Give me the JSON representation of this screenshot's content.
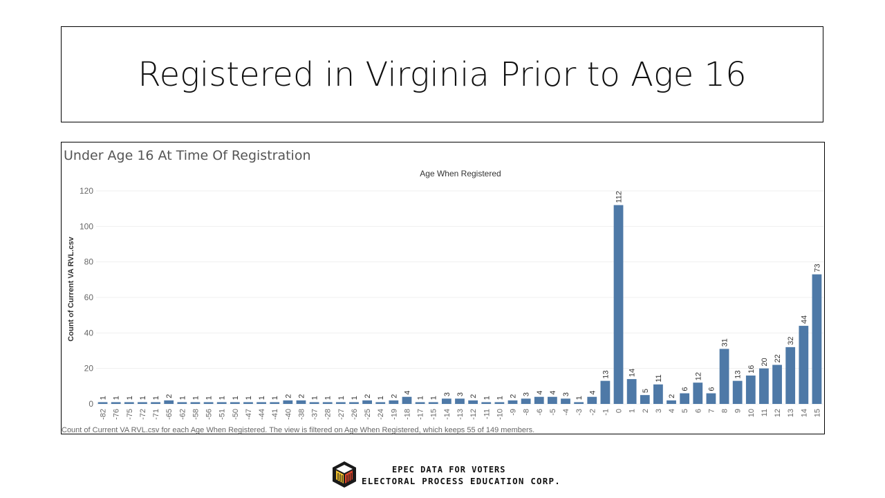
{
  "slide": {
    "title": "Registered in Virginia Prior to Age 16"
  },
  "footer": {
    "line1": "EPEC DATA FOR VOTERS",
    "line2": "ELECTORAL PROCESS EDUCATION CORP.",
    "logo_icon": "epec-cube-logo-icon",
    "logo_colors": [
      "#1a1a1a",
      "#f2c12e",
      "#d9432b"
    ]
  },
  "chart_data": {
    "type": "bar",
    "title": "Under Age 16 At Time Of Registration",
    "column_header": "Age When Registered",
    "xlabel": "",
    "ylabel": "Count of Current VA RVL.csv",
    "ylim": [
      0,
      120
    ],
    "yticks": [
      0,
      20,
      40,
      60,
      80,
      100,
      120
    ],
    "bar_color": "#4e79a7",
    "grid": true,
    "caption": "Count of Current VA RVL.csv for each Age When Registered. The view is filtered on Age When Registered, which keeps 55 of 149 members.",
    "categories": [
      "-82",
      "-76",
      "-75",
      "-72",
      "-71",
      "-65",
      "-62",
      "-58",
      "-56",
      "-51",
      "-50",
      "-47",
      "-44",
      "-41",
      "-40",
      "-38",
      "-37",
      "-28",
      "-27",
      "-26",
      "-25",
      "-24",
      "-19",
      "-18",
      "-17",
      "-15",
      "-14",
      "-13",
      "-12",
      "-11",
      "-10",
      "-9",
      "-8",
      "-6",
      "-5",
      "-4",
      "-3",
      "-2",
      "-1",
      "0",
      "1",
      "2",
      "3",
      "4",
      "5",
      "6",
      "7",
      "8",
      "9",
      "10",
      "11",
      "12",
      "13",
      "14",
      "15"
    ],
    "values": [
      1,
      1,
      1,
      1,
      1,
      2,
      1,
      1,
      1,
      1,
      1,
      1,
      1,
      1,
      2,
      2,
      1,
      1,
      1,
      1,
      2,
      1,
      2,
      4,
      1,
      1,
      3,
      3,
      2,
      1,
      1,
      2,
      3,
      4,
      4,
      3,
      1,
      4,
      13,
      112,
      14,
      5,
      11,
      2,
      6,
      12,
      6,
      31,
      13,
      16,
      20,
      22,
      32,
      44,
      73
    ]
  }
}
